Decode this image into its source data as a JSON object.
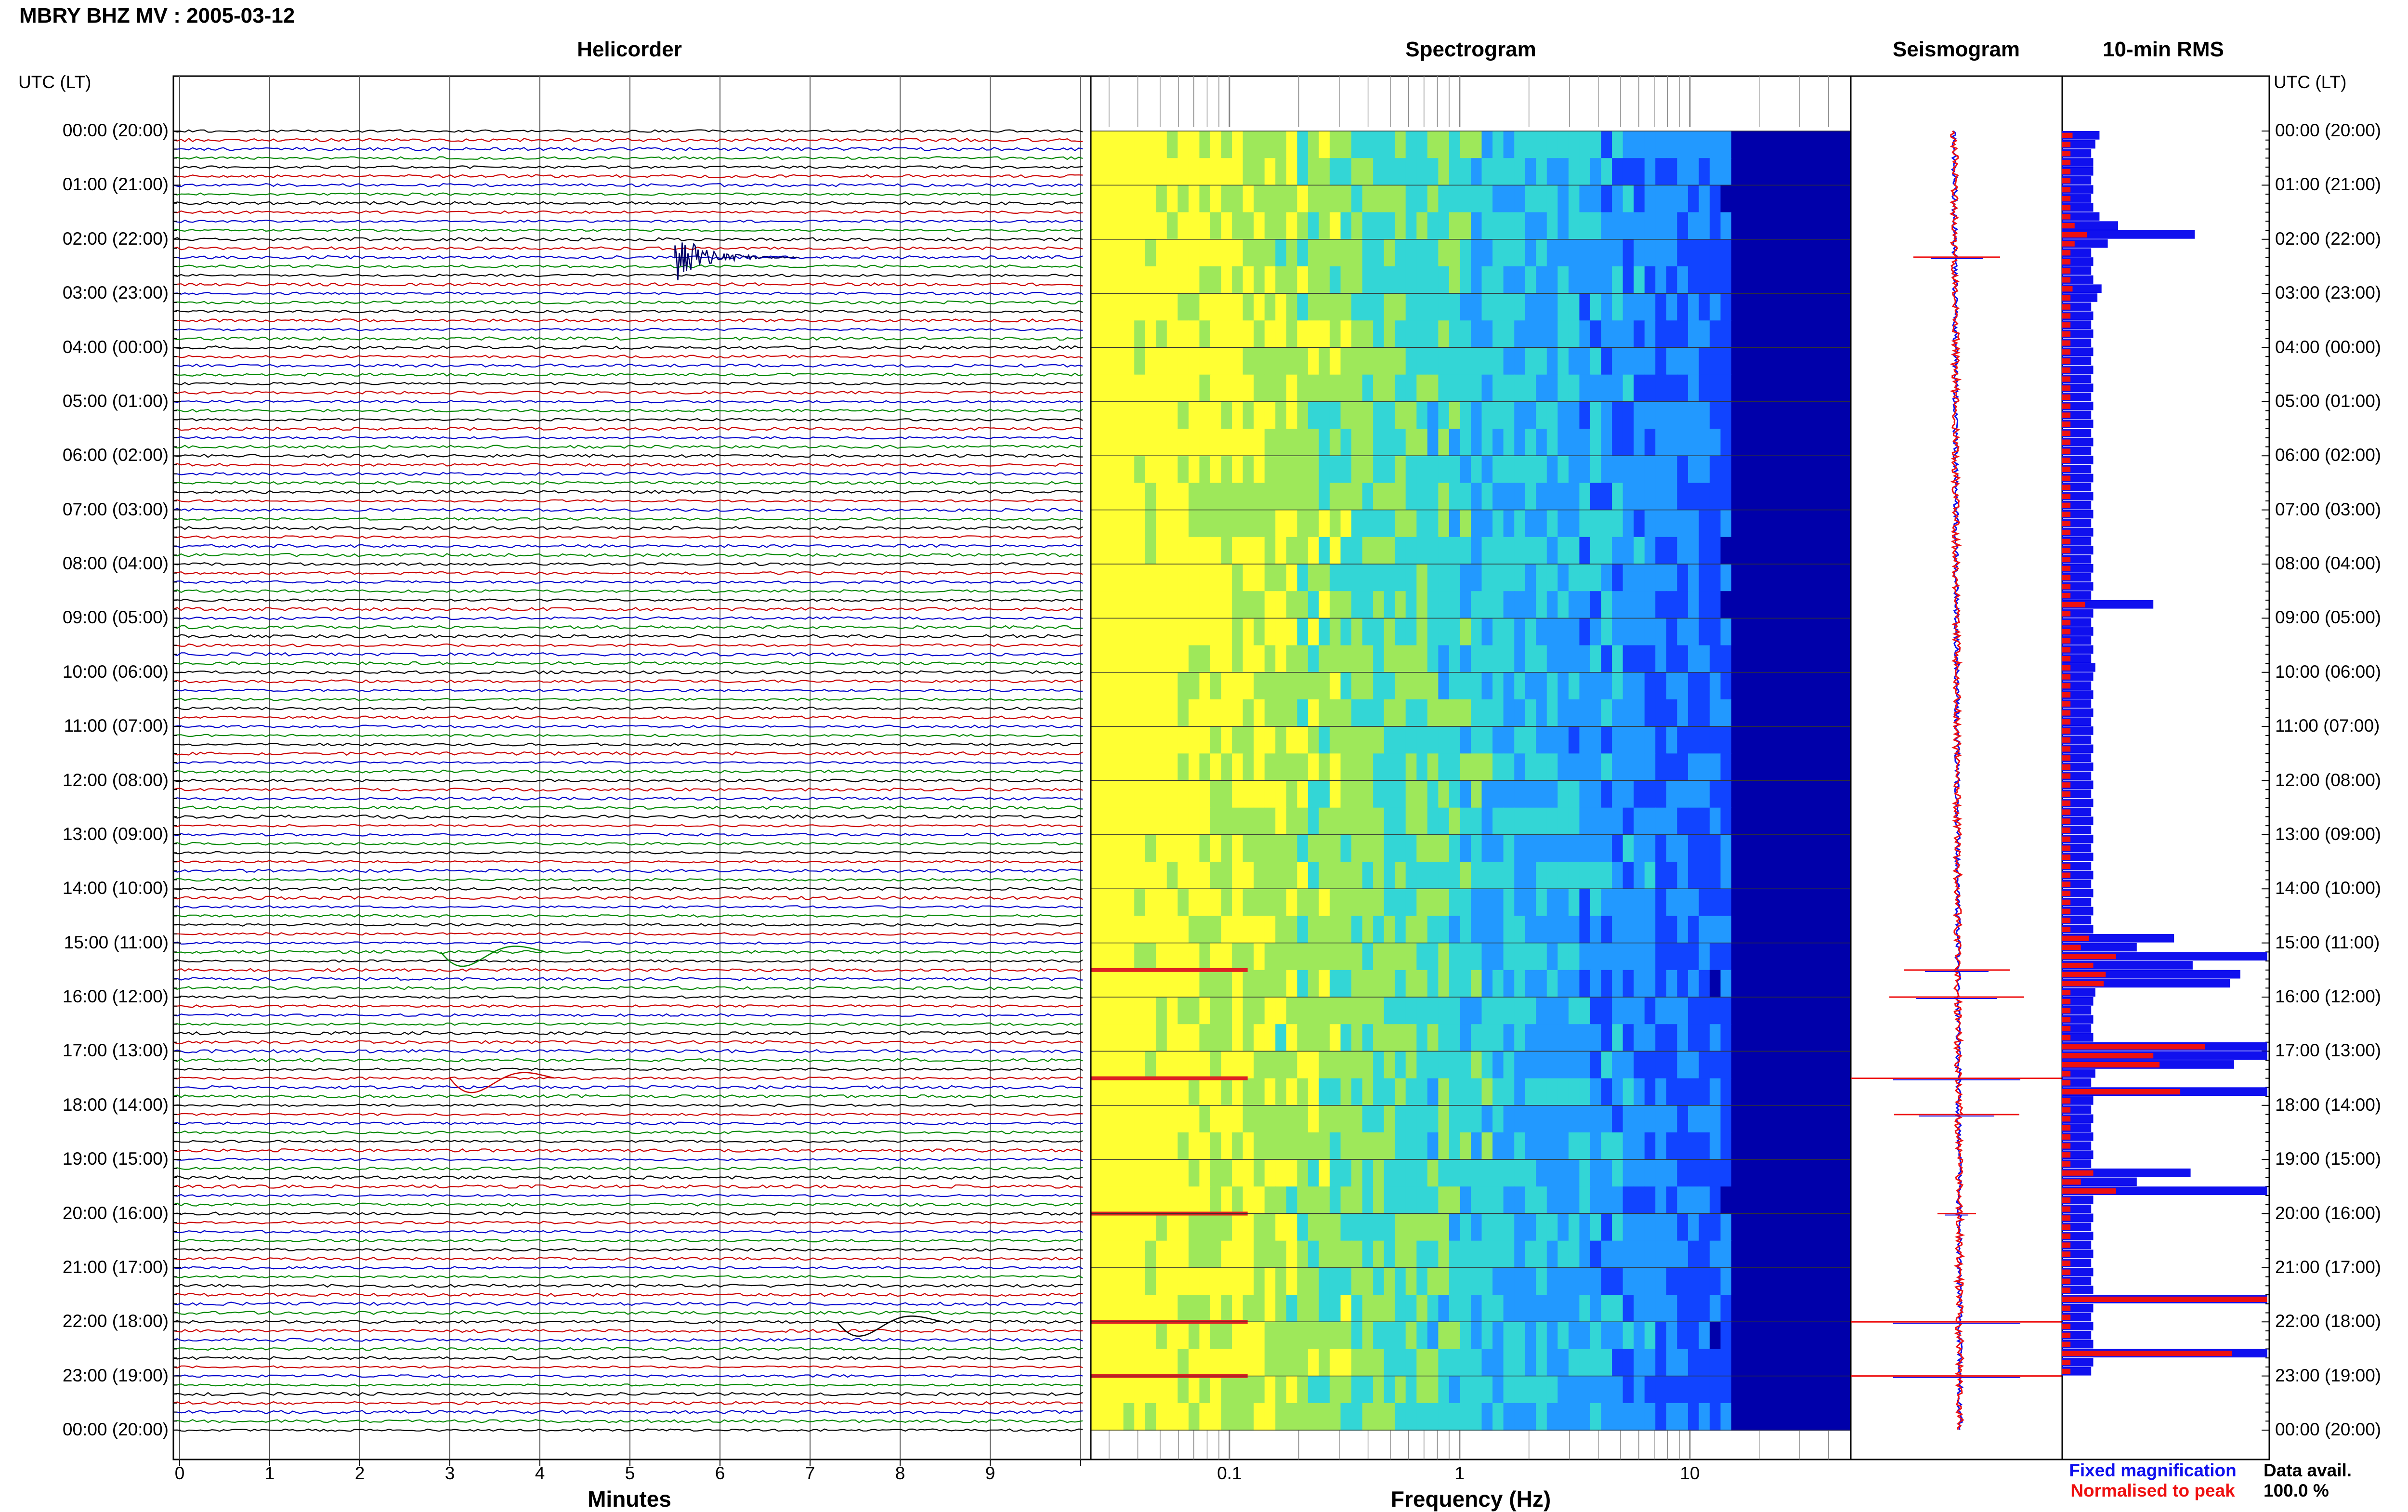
{
  "title": "MBRY BHZ MV : 2005-03-12",
  "panels": {
    "helicorder": "Helicorder",
    "spectrogram": "Spectrogram",
    "seismogram": "Seismogram",
    "rms": "10-min RMS"
  },
  "time_axis_label": "UTC (LT)",
  "time_labels": [
    "00:00 (20:00)",
    "01:00 (21:00)",
    "02:00 (22:00)",
    "03:00 (23:00)",
    "04:00 (00:00)",
    "05:00 (01:00)",
    "06:00 (02:00)",
    "07:00 (03:00)",
    "08:00 (04:00)",
    "09:00 (05:00)",
    "10:00 (06:00)",
    "11:00 (07:00)",
    "12:00 (08:00)",
    "13:00 (09:00)",
    "14:00 (10:00)",
    "15:00 (11:00)",
    "16:00 (12:00)",
    "17:00 (13:00)",
    "18:00 (14:00)",
    "19:00 (15:00)",
    "20:00 (16:00)",
    "21:00 (17:00)",
    "22:00 (18:00)",
    "23:00 (19:00)",
    "00:00 (20:00)"
  ],
  "helicorder_xlabel": "Minutes",
  "helicorder_xticks": [
    "0",
    "1",
    "2",
    "3",
    "4",
    "5",
    "6",
    "7",
    "8",
    "9"
  ],
  "spectrogram_xlabel": "Frequency (Hz)",
  "spectrogram_xticks": [
    "0.1",
    "1",
    "10"
  ],
  "legend": {
    "fixed": "Fixed magnification",
    "normalised": "Normalised to peak",
    "fixed_color": "#1010ee",
    "normalised_color": "#ee1010"
  },
  "data_avail": {
    "label": "Data avail.",
    "value": "100.0 %"
  },
  "chart_data": {
    "type": "helicorder-spectrogram",
    "helicorder": {
      "xlim": [
        0,
        10
      ],
      "ylim": [
        "00:00",
        "24:00"
      ],
      "rows_per_hour": 6,
      "trace_colors": [
        "#000000",
        "#cc0000",
        "#0000cc",
        "#008800"
      ],
      "events": [
        {
          "time": "02:20",
          "minute": 5.5,
          "type": "earthquake"
        },
        {
          "time": "15:10",
          "minute": 2.9,
          "type": "long-period"
        },
        {
          "time": "17:30",
          "minute": 3.0,
          "type": "long-period"
        },
        {
          "time": "22:00",
          "minute": 7.3,
          "type": "long-period"
        }
      ]
    },
    "spectrogram": {
      "x_scale": "log",
      "xlim_hz": [
        0.025,
        50
      ],
      "colormap": [
        "#ffff33",
        "#9ee85a",
        "#33d6d6",
        "#2299ff",
        "#1144ff",
        "#0000aa"
      ]
    },
    "seismogram": {
      "series": [
        "Fixed magnification",
        "Normalised to peak"
      ]
    },
    "rms_10min": {
      "categories_hour": [
        0.0,
        0.17,
        0.33,
        0.5,
        0.67,
        0.83,
        1.0,
        1.17,
        1.33,
        1.5,
        1.67,
        1.83,
        2.0,
        2.17,
        2.33,
        2.5,
        2.67,
        2.83,
        3.0,
        3.17,
        3.33,
        3.5,
        3.67,
        3.83,
        4.0,
        4.17,
        4.33,
        4.5,
        4.67,
        4.83,
        5.0,
        5.17,
        5.33,
        5.5,
        5.67,
        5.83,
        6.0,
        6.17,
        6.33,
        6.5,
        6.67,
        6.83,
        7.0,
        7.17,
        7.33,
        7.5,
        7.67,
        7.83,
        8.0,
        8.17,
        8.33,
        8.5,
        8.67,
        8.83,
        9.0,
        9.17,
        9.33,
        9.5,
        9.67,
        9.83,
        10.0,
        10.17,
        10.33,
        10.5,
        10.67,
        10.83,
        11.0,
        11.17,
        11.33,
        11.5,
        11.67,
        11.83,
        12.0,
        12.17,
        12.33,
        12.5,
        12.67,
        12.83,
        13.0,
        13.17,
        13.33,
        13.5,
        13.67,
        13.83,
        14.0,
        14.17,
        14.33,
        14.5,
        14.67,
        14.83,
        15.0,
        15.17,
        15.33,
        15.5,
        15.67,
        15.83,
        16.0,
        16.17,
        16.33,
        16.5,
        16.67,
        16.83,
        17.0,
        17.17,
        17.33,
        17.5,
        17.67,
        17.83,
        18.0,
        18.17,
        18.33,
        18.5,
        18.67,
        18.83,
        19.0,
        19.17,
        19.33,
        19.5,
        19.67,
        19.83,
        20.0,
        20.17,
        20.33,
        20.5,
        20.67,
        20.83,
        21.0,
        21.17,
        21.33,
        21.5,
        21.67,
        21.83,
        22.0,
        22.17,
        22.33,
        22.5,
        22.67,
        22.83,
        23.0,
        23.17,
        23.33,
        23.5,
        23.67,
        23.83
      ],
      "fixed": [
        0.18,
        0.16,
        0.14,
        0.15,
        0.15,
        0.14,
        0.15,
        0.14,
        0.15,
        0.18,
        0.27,
        0.64,
        0.22,
        0.14,
        0.15,
        0.14,
        0.15,
        0.19,
        0.17,
        0.14,
        0.15,
        0.14,
        0.15,
        0.14,
        0.15,
        0.14,
        0.15,
        0.14,
        0.15,
        0.14,
        0.15,
        0.14,
        0.15,
        0.14,
        0.15,
        0.14,
        0.15,
        0.14,
        0.15,
        0.14,
        0.15,
        0.14,
        0.15,
        0.14,
        0.15,
        0.14,
        0.15,
        0.14,
        0.15,
        0.14,
        0.15,
        0.14,
        0.44,
        0.15,
        0.14,
        0.15,
        0.14,
        0.15,
        0.14,
        0.16,
        0.15,
        0.14,
        0.15,
        0.14,
        0.15,
        0.14,
        0.15,
        0.14,
        0.15,
        0.14,
        0.15,
        0.14,
        0.15,
        0.14,
        0.15,
        0.14,
        0.15,
        0.14,
        0.15,
        0.14,
        0.15,
        0.14,
        0.15,
        0.14,
        0.15,
        0.14,
        0.15,
        0.14,
        0.15,
        0.54,
        0.36,
        0.99,
        0.63,
        0.86,
        0.81,
        0.16,
        0.15,
        0.14,
        0.15,
        0.14,
        0.15,
        0.99,
        0.99,
        0.83,
        0.16,
        0.14,
        0.99,
        0.15,
        0.14,
        0.15,
        0.14,
        0.15,
        0.14,
        0.15,
        0.14,
        0.62,
        0.36,
        0.99,
        0.15,
        0.14,
        0.15,
        0.14,
        0.15,
        0.14,
        0.15,
        0.14,
        0.15,
        0.14,
        0.15,
        0.99,
        0.15,
        0.14,
        0.15,
        0.14,
        0.15,
        0.99,
        0.15,
        0.14
      ],
      "normalised": [
        0.05,
        0.04,
        0.04,
        0.04,
        0.04,
        0.04,
        0.04,
        0.04,
        0.04,
        0.04,
        0.06,
        0.12,
        0.06,
        0.04,
        0.04,
        0.04,
        0.04,
        0.05,
        0.04,
        0.04,
        0.04,
        0.04,
        0.04,
        0.04,
        0.04,
        0.04,
        0.04,
        0.04,
        0.04,
        0.04,
        0.04,
        0.04,
        0.04,
        0.04,
        0.04,
        0.04,
        0.04,
        0.04,
        0.04,
        0.04,
        0.04,
        0.04,
        0.04,
        0.04,
        0.04,
        0.04,
        0.04,
        0.04,
        0.04,
        0.04,
        0.04,
        0.04,
        0.11,
        0.04,
        0.04,
        0.04,
        0.04,
        0.04,
        0.04,
        0.04,
        0.04,
        0.04,
        0.04,
        0.04,
        0.04,
        0.04,
        0.04,
        0.04,
        0.04,
        0.04,
        0.04,
        0.04,
        0.04,
        0.04,
        0.04,
        0.04,
        0.04,
        0.04,
        0.04,
        0.04,
        0.04,
        0.04,
        0.04,
        0.04,
        0.04,
        0.04,
        0.04,
        0.04,
        0.04,
        0.13,
        0.09,
        0.26,
        0.15,
        0.21,
        0.2,
        0.04,
        0.04,
        0.04,
        0.04,
        0.04,
        0.04,
        0.69,
        0.44,
        0.47,
        0.04,
        0.04,
        0.57,
        0.04,
        0.04,
        0.04,
        0.04,
        0.04,
        0.04,
        0.04,
        0.04,
        0.15,
        0.09,
        0.26,
        0.04,
        0.04,
        0.04,
        0.04,
        0.04,
        0.04,
        0.04,
        0.04,
        0.04,
        0.04,
        0.04,
        0.99,
        0.04,
        0.04,
        0.04,
        0.04,
        0.04,
        0.82,
        0.04,
        0.04
      ]
    }
  }
}
